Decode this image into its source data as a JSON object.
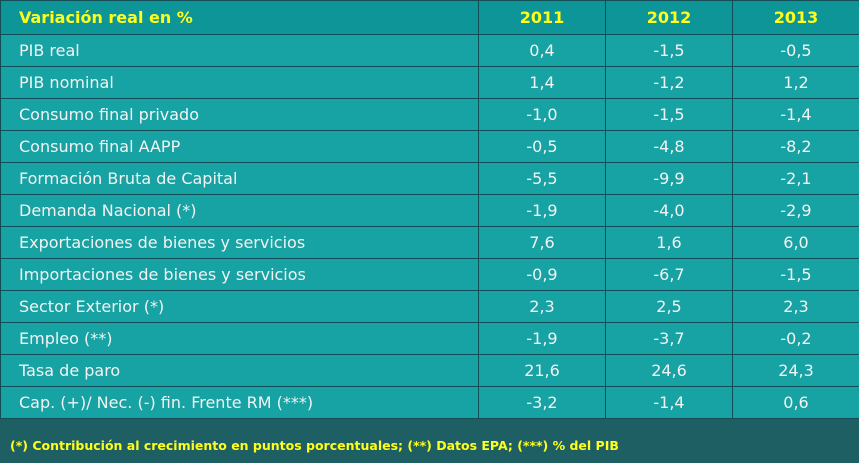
{
  "table": {
    "header": [
      "Variación real en %",
      "2011",
      "2012",
      "2013"
    ],
    "rows": [
      [
        "PIB real",
        "0,4",
        "-1,5",
        "-0,5"
      ],
      [
        "PIB nominal",
        "1,4",
        "-1,2",
        "1,2"
      ],
      [
        "Consumo final privado",
        "-1,0",
        "-1,5",
        "-1,4"
      ],
      [
        "Consumo final AAPP",
        "-0,5",
        "-4,8",
        "-8,2"
      ],
      [
        "Formación Bruta de Capital",
        "-5,5",
        "-9,9",
        "-2,1"
      ],
      [
        "Demanda Nacional (*)",
        "-1,9",
        "-4,0",
        "-2,9"
      ],
      [
        "Exportaciones de bienes y servicios",
        "7,6",
        "1,6",
        "6,0"
      ],
      [
        "Importaciones de bienes y servicios",
        "-0,9",
        "-6,7",
        "-1,5"
      ],
      [
        "Sector Exterior (*)",
        "2,3",
        "2,5",
        "2,3"
      ],
      [
        "Empleo (**)",
        "-1,9",
        "-3,7",
        "-0,2"
      ],
      [
        "Tasa de paro",
        "21,6",
        "24,6",
        "24,3"
      ],
      [
        "Cap. (+)/ Nec. (-) fin. Frente RM (***)",
        "-3,2",
        "-1,4",
        "0,6"
      ]
    ],
    "footnote": "(*) Contribución al crecimiento en puntos porcentuales; (**) Datos EPA; (***) % del PIB"
  }
}
